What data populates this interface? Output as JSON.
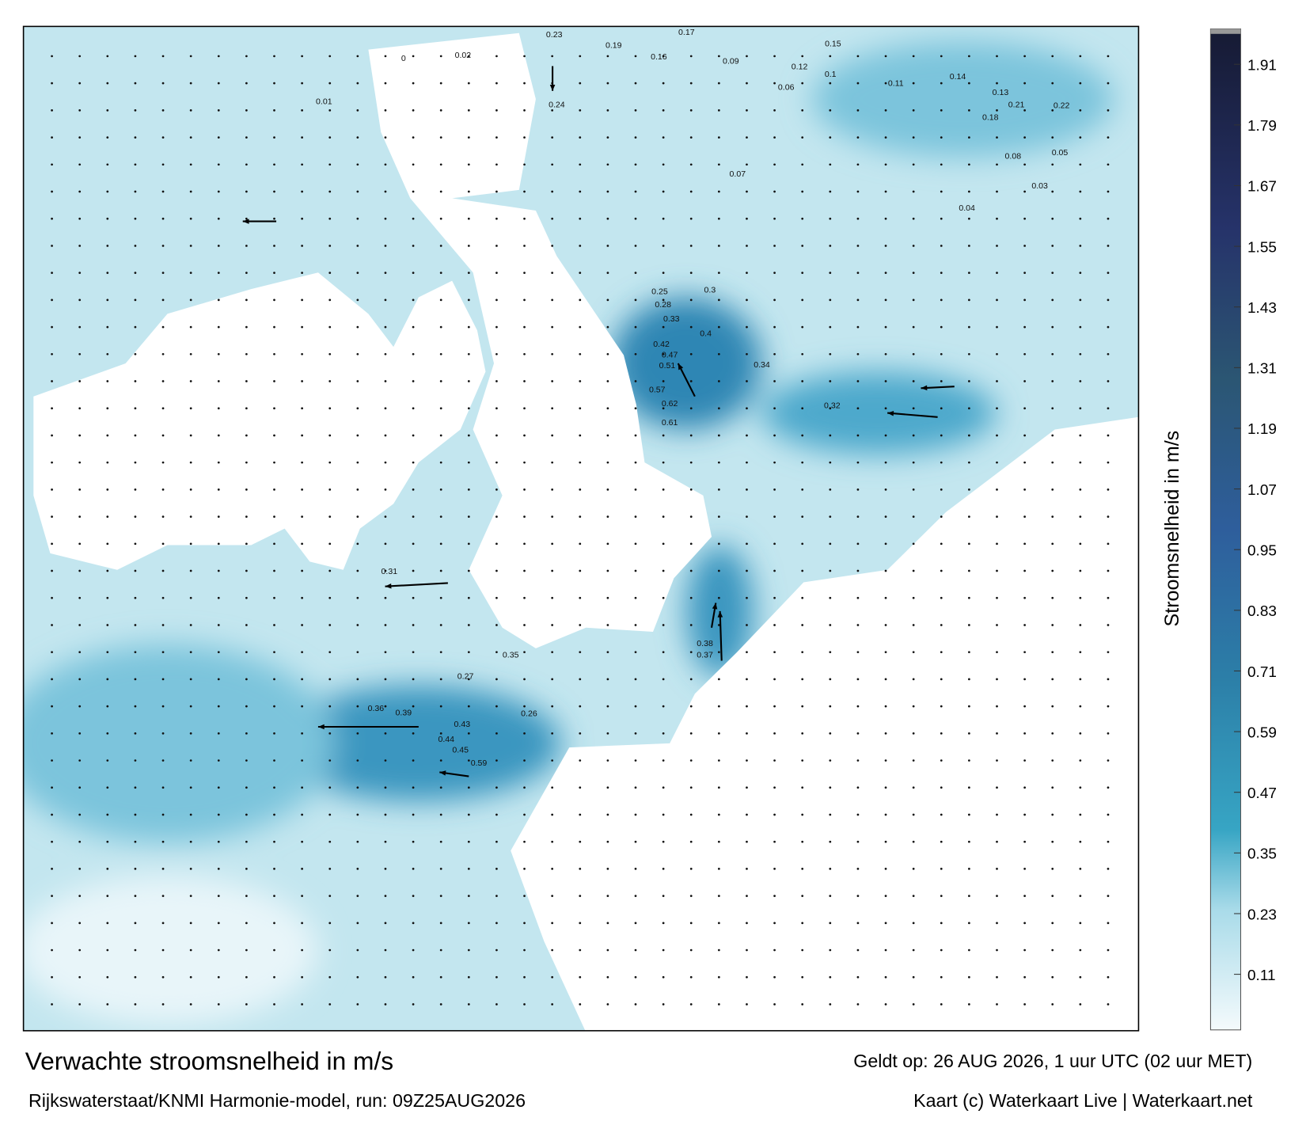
{
  "title": "Verwachte stroomsnelheid in m/s",
  "subtitle": "Rijkswaterstaat/KNMI Harmonie-model, run: 09Z25AUG2026",
  "valid_time": "Geldt op: 26 AUG 2026, 1 uur UTC (02 uur MET)",
  "credit": "Kaart (c) Waterkaart Live | Waterkaart.net",
  "colorbar": {
    "label": "Stroomsnelheid in m/s",
    "lim": [
      0,
      1.98
    ],
    "ticks": [
      0.11,
      0.23,
      0.35,
      0.47,
      0.59,
      0.71,
      0.83,
      0.95,
      1.07,
      1.19,
      1.31,
      1.43,
      1.55,
      1.67,
      1.79,
      1.91
    ]
  },
  "map": {
    "labels": [
      0.61,
      0.62,
      0.57,
      0.51,
      0.47,
      0.42,
      0.4,
      0.59,
      0.45,
      0.44,
      0.43,
      0.39,
      0.36,
      0.38,
      0.37,
      0.35,
      0.33,
      0.3,
      0.28,
      0.25,
      0.24,
      0.23,
      0.19,
      0.16,
      0.17,
      0.15,
      0.09,
      0.12,
      0.22,
      0.21,
      0.18,
      0.13,
      0.14,
      0.11,
      0.1,
      0.06,
      0.08,
      0.05,
      0.07,
      0.04,
      0.03,
      0.02,
      0.01,
      0,
      0.26,
      0.27,
      0.31,
      0.32,
      0.34
    ]
  }
}
